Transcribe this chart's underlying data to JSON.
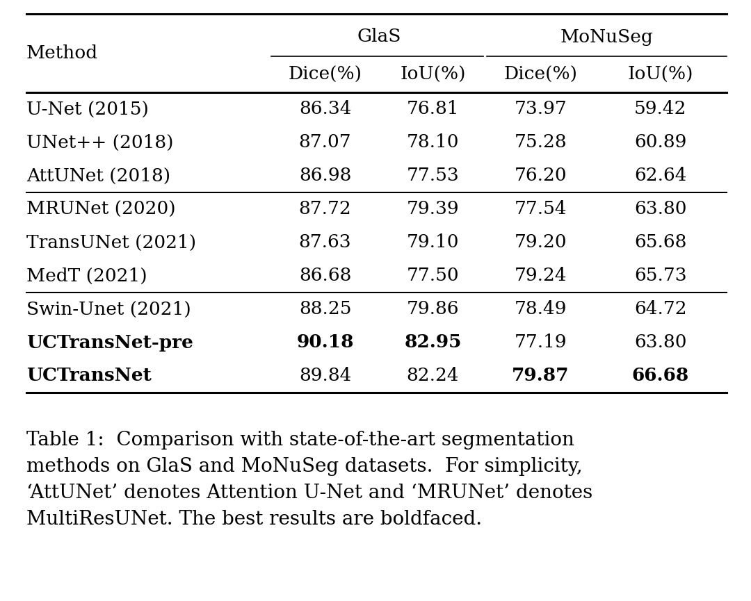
{
  "rows": [
    {
      "method": "U-Net (2015)",
      "bold_method": false,
      "vals": [
        "86.34",
        "76.81",
        "73.97",
        "59.42"
      ],
      "bold_vals": [
        false,
        false,
        false,
        false
      ]
    },
    {
      "method": "UNet++ (2018)",
      "bold_method": false,
      "vals": [
        "87.07",
        "78.10",
        "75.28",
        "60.89"
      ],
      "bold_vals": [
        false,
        false,
        false,
        false
      ]
    },
    {
      "method": "AttUNet (2018)",
      "bold_method": false,
      "vals": [
        "86.98",
        "77.53",
        "76.20",
        "62.64"
      ],
      "bold_vals": [
        false,
        false,
        false,
        false
      ]
    },
    {
      "method": "MRUNet (2020)",
      "bold_method": false,
      "vals": [
        "87.72",
        "79.39",
        "77.54",
        "63.80"
      ],
      "bold_vals": [
        false,
        false,
        false,
        false
      ]
    },
    {
      "method": "TransUNet (2021)",
      "bold_method": false,
      "vals": [
        "87.63",
        "79.10",
        "79.20",
        "65.68"
      ],
      "bold_vals": [
        false,
        false,
        false,
        false
      ]
    },
    {
      "method": "MedT (2021)",
      "bold_method": false,
      "vals": [
        "86.68",
        "77.50",
        "79.24",
        "65.73"
      ],
      "bold_vals": [
        false,
        false,
        false,
        false
      ]
    },
    {
      "method": "Swin-Unet (2021)",
      "bold_method": false,
      "vals": [
        "88.25",
        "79.86",
        "78.49",
        "64.72"
      ],
      "bold_vals": [
        false,
        false,
        false,
        false
      ]
    },
    {
      "method": "UCTransNet-pre",
      "bold_method": true,
      "vals": [
        "90.18",
        "82.95",
        "77.19",
        "63.80"
      ],
      "bold_vals": [
        true,
        true,
        false,
        false
      ]
    },
    {
      "method": "UCTransNet",
      "bold_method": true,
      "vals": [
        "89.84",
        "82.24",
        "79.87",
        "66.68"
      ],
      "bold_vals": [
        false,
        false,
        true,
        true
      ]
    }
  ],
  "group_sep_after": [
    3,
    6
  ],
  "col_data_headers": [
    "Dice(%)",
    "IoU(%)",
    "Dice(%)",
    "IoU(%)"
  ],
  "glas_label": "GlaS",
  "mono_label": "MoNuSeg",
  "method_label": "Method",
  "caption_line1": "Table 1:  Comparison with state-of-the-art segmentation",
  "caption_line2": "methods on GlaS and MoNuSeg datasets.  For simplicity,",
  "caption_line3": "‘AttUNet’ denotes Attention U-Net and ‘MRUNet’ denotes",
  "caption_line4": "MultiResUNet. The best results are boldfaced.",
  "bg": "#ffffff",
  "fg": "#000000",
  "fs_table": 19,
  "fs_caption": 20
}
